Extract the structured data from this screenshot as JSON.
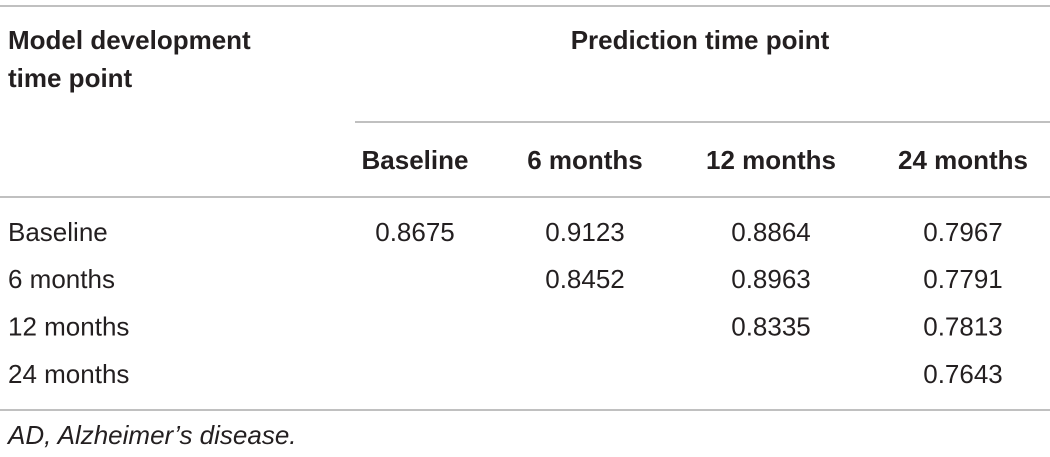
{
  "table": {
    "row_header": [
      "Model development",
      "time point"
    ],
    "group_header": "Prediction time point",
    "columns": [
      "Baseline",
      "6 months",
      "12 months",
      "24 months"
    ],
    "rows": [
      {
        "label": "Baseline",
        "cells": [
          0.8675,
          0.9123,
          0.8864,
          0.7967
        ]
      },
      {
        "label": "6 months",
        "cells": [
          null,
          0.8452,
          0.8963,
          0.7791
        ]
      },
      {
        "label": "12 months",
        "cells": [
          null,
          null,
          0.8335,
          0.7813
        ]
      },
      {
        "label": "24 months",
        "cells": [
          null,
          null,
          null,
          0.7643
        ]
      }
    ],
    "footnote": "AD, Alzheimer’s disease."
  }
}
